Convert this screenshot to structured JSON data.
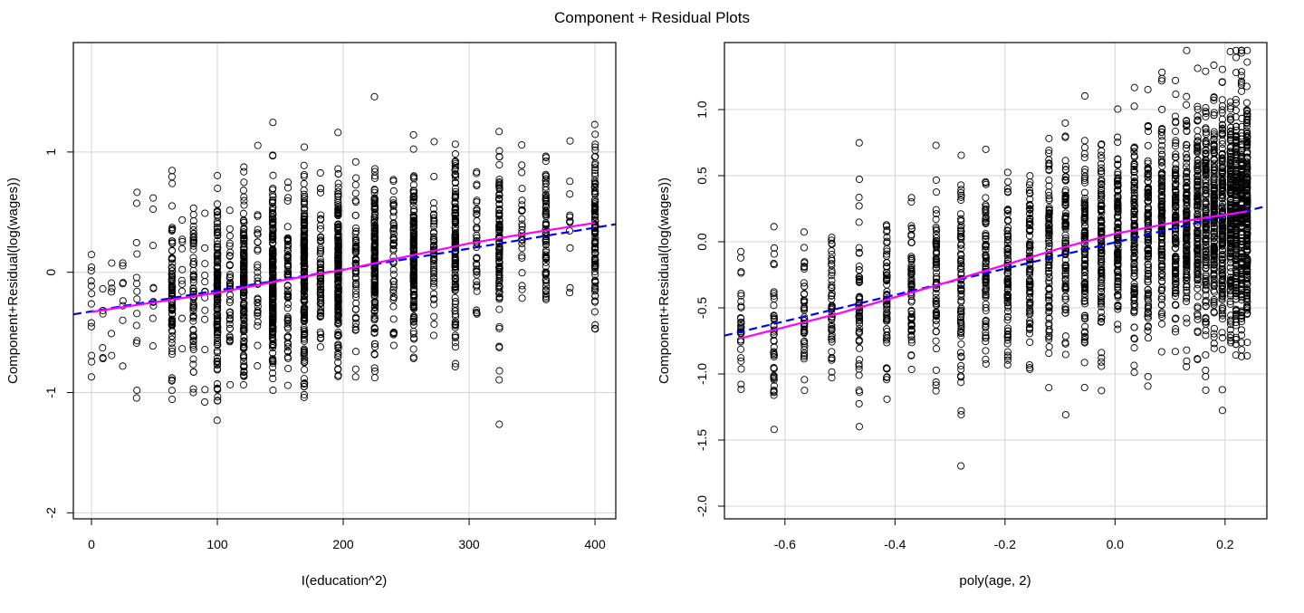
{
  "figure_title": "Component + Residual Plots",
  "chart_data": [
    {
      "type": "scatter",
      "title": "",
      "xlabel": "I(education^2)",
      "ylabel": "Component+Residual(log(wages))",
      "xlim": [
        -14.4,
        416.5
      ],
      "ylim": [
        -2.05,
        1.91
      ],
      "xticks": [
        0,
        100,
        200,
        300,
        400
      ],
      "xtick_labels": [
        "0",
        "100",
        "200",
        "300",
        "400"
      ],
      "yticks": [
        -2,
        -1,
        0,
        1
      ],
      "ytick_labels": [
        "-2",
        "-1",
        "0",
        "1"
      ],
      "grid": true,
      "seed": 17,
      "groups_note": "[x, n, mean, sd]",
      "groups": [
        [
          0,
          12,
          -0.33,
          0.3
        ],
        [
          9,
          6,
          -0.3,
          0.3
        ],
        [
          16,
          6,
          -0.28,
          0.35
        ],
        [
          25,
          8,
          -0.25,
          0.3
        ],
        [
          36,
          14,
          -0.25,
          0.35
        ],
        [
          49,
          10,
          -0.22,
          0.35
        ],
        [
          64,
          90,
          -0.2,
          0.35
        ],
        [
          72,
          10,
          -0.19,
          0.3
        ],
        [
          81,
          70,
          -0.18,
          0.35
        ],
        [
          90,
          14,
          -0.17,
          0.3
        ],
        [
          100,
          160,
          -0.16,
          0.35
        ],
        [
          110,
          40,
          -0.14,
          0.32
        ],
        [
          121,
          150,
          -0.12,
          0.35
        ],
        [
          132,
          30,
          -0.1,
          0.35
        ],
        [
          144,
          260,
          -0.08,
          0.35
        ],
        [
          156,
          70,
          -0.06,
          0.35
        ],
        [
          169,
          200,
          -0.04,
          0.35
        ],
        [
          182,
          70,
          -0.02,
          0.35
        ],
        [
          196,
          220,
          0.01,
          0.35
        ],
        [
          210,
          60,
          0.04,
          0.33
        ],
        [
          225,
          170,
          0.06,
          0.35
        ],
        [
          240,
          50,
          0.09,
          0.33
        ],
        [
          256,
          160,
          0.12,
          0.35
        ],
        [
          272,
          50,
          0.16,
          0.33
        ],
        [
          289,
          140,
          0.2,
          0.35
        ],
        [
          306,
          40,
          0.22,
          0.33
        ],
        [
          324,
          110,
          0.26,
          0.35
        ],
        [
          342,
          25,
          0.3,
          0.3
        ],
        [
          361,
          80,
          0.33,
          0.33
        ],
        [
          380,
          12,
          0.37,
          0.3
        ],
        [
          400,
          110,
          0.4,
          0.35
        ]
      ],
      "fit_line": {
        "color": "#0000FF",
        "points": [
          [
            -14.4,
            -0.35
          ],
          [
            416.5,
            0.4
          ]
        ]
      },
      "smooth_line": {
        "color": "#FF00FF",
        "points": [
          [
            0,
            -0.33
          ],
          [
            50,
            -0.25
          ],
          [
            100,
            -0.17
          ],
          [
            150,
            -0.07
          ],
          [
            200,
            0.02
          ],
          [
            250,
            0.13
          ],
          [
            300,
            0.24
          ],
          [
            350,
            0.33
          ],
          [
            400,
            0.41
          ]
        ]
      }
    },
    {
      "type": "scatter",
      "title": "",
      "xlabel": "poly(age, 2)",
      "ylabel": "Component+Residual(log(wages))",
      "xlim": [
        -0.71,
        0.276
      ],
      "ylim": [
        -2.096,
        1.507
      ],
      "xticks": [
        -0.6,
        -0.4,
        -0.2,
        0.0,
        0.2
      ],
      "xtick_labels": [
        "-0.6",
        "-0.4",
        "-0.2",
        "0.0",
        "0.2"
      ],
      "yticks": [
        -2.0,
        -1.5,
        -1.0,
        -0.5,
        0.0,
        0.5,
        1.0
      ],
      "ytick_labels": [
        "-2.0",
        "-1.5",
        "-1.0",
        "-0.5",
        "0.0",
        "0.5",
        "1.0"
      ],
      "grid": true,
      "seed": 41,
      "groups_note": "[x, n, mean, sd]",
      "groups": [
        [
          -0.68,
          30,
          -0.62,
          0.3
        ],
        [
          -0.62,
          45,
          -0.6,
          0.35
        ],
        [
          -0.565,
          45,
          -0.58,
          0.25
        ],
        [
          -0.515,
          50,
          -0.52,
          0.28
        ],
        [
          -0.465,
          60,
          -0.48,
          0.38
        ],
        [
          -0.415,
          65,
          -0.44,
          0.33
        ],
        [
          -0.37,
          65,
          -0.38,
          0.3
        ],
        [
          -0.325,
          70,
          -0.33,
          0.35
        ],
        [
          -0.28,
          80,
          -0.29,
          0.38
        ],
        [
          -0.235,
          85,
          -0.24,
          0.33
        ],
        [
          -0.195,
          90,
          -0.19,
          0.33
        ],
        [
          -0.155,
          95,
          -0.15,
          0.33
        ],
        [
          -0.12,
          100,
          -0.1,
          0.33
        ],
        [
          -0.09,
          105,
          -0.06,
          0.33
        ],
        [
          -0.055,
          110,
          -0.02,
          0.38
        ],
        [
          -0.025,
          115,
          0.02,
          0.35
        ],
        [
          0.005,
          120,
          0.06,
          0.35
        ],
        [
          0.035,
          120,
          0.08,
          0.38
        ],
        [
          0.06,
          125,
          0.1,
          0.38
        ],
        [
          0.085,
          130,
          0.12,
          0.38
        ],
        [
          0.11,
          135,
          0.14,
          0.38
        ],
        [
          0.13,
          140,
          0.15,
          0.4
        ],
        [
          0.15,
          145,
          0.17,
          0.4
        ],
        [
          0.165,
          150,
          0.18,
          0.4
        ],
        [
          0.18,
          160,
          0.19,
          0.42
        ],
        [
          0.195,
          170,
          0.2,
          0.42
        ],
        [
          0.21,
          180,
          0.21,
          0.42
        ],
        [
          0.22,
          190,
          0.22,
          0.42
        ],
        [
          0.23,
          200,
          0.22,
          0.42
        ],
        [
          0.24,
          210,
          0.23,
          0.42
        ]
      ],
      "fit_line": {
        "color": "#0000FF",
        "points": [
          [
            -0.71,
            -0.71
          ],
          [
            0.276,
            0.27
          ]
        ]
      },
      "smooth_line": {
        "color": "#FF00FF",
        "points": [
          [
            -0.68,
            -0.73
          ],
          [
            -0.5,
            -0.54
          ],
          [
            -0.3,
            -0.3
          ],
          [
            -0.1,
            -0.05
          ],
          [
            0,
            0.06
          ],
          [
            0.1,
            0.14
          ],
          [
            0.24,
            0.23
          ]
        ]
      }
    }
  ]
}
